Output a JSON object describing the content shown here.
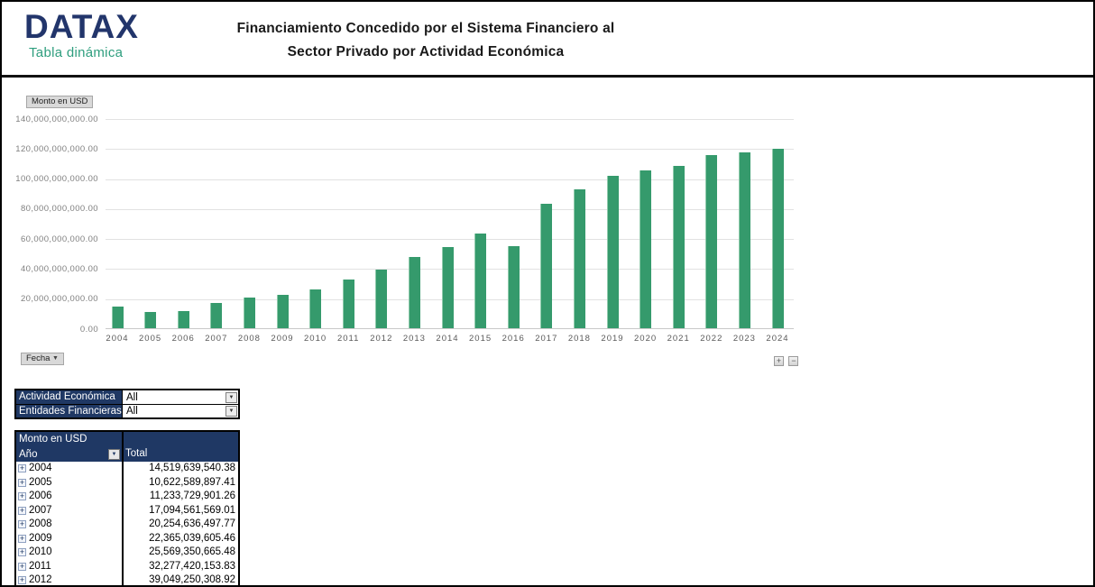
{
  "header": {
    "logo": "DATAX",
    "logo_subtitle": "Tabla dinámica",
    "title_line1": "Financiamiento Concedido por el Sistema Financiero al",
    "title_line2": "Sector Privado por Actividad Económica"
  },
  "chart": {
    "value_field_button": "Monto en USD",
    "axis_field_button": "Fecha",
    "field_caret": "▼",
    "zoom_in_label": "+",
    "zoom_out_label": "−",
    "y_ticks": [
      "140,000,000,000.00",
      "120,000,000,000.00",
      "100,000,000,000.00",
      "80,000,000,000.00",
      "60,000,000,000.00",
      "40,000,000,000.00",
      "20,000,000,000.00",
      "0.00"
    ]
  },
  "chart_data": {
    "type": "bar",
    "categories": [
      "2004",
      "2005",
      "2006",
      "2007",
      "2008",
      "2009",
      "2010",
      "2011",
      "2012",
      "2013",
      "2014",
      "2015",
      "2016",
      "2017",
      "2018",
      "2019",
      "2020",
      "2021",
      "2022",
      "2023",
      "2024"
    ],
    "values": [
      14519639540,
      10622589897,
      11233729901,
      17094561569,
      20254636498,
      22365039605,
      25569350665,
      32277420154,
      39049250309,
      47200000000,
      54200000000,
      63200000000,
      54600000000,
      83200000000,
      92800000000,
      101800000000,
      104900000000,
      108300000000,
      115500000000,
      117000000000,
      119400000000
    ],
    "title": "",
    "xlabel": "",
    "ylabel": "Monto en USD",
    "ylim": [
      0,
      140000000000
    ],
    "grid": true,
    "bar_color": "#359a6c"
  },
  "filters": [
    {
      "label": "Actividad Económica",
      "value": "All",
      "dropdown_glyph": "▼"
    },
    {
      "label": "Entidades Financieras",
      "value": "All",
      "dropdown_glyph": "▼"
    }
  ],
  "pivot_table": {
    "value_field": "Monto en USD",
    "row_header": "Año",
    "row_header_filter_glyph": "▼",
    "total_header": "Total",
    "expand_glyph": "+",
    "rows": [
      {
        "year": "2004",
        "total": "14,519,639,540.38"
      },
      {
        "year": "2005",
        "total": "10,622,589,897.41"
      },
      {
        "year": "2006",
        "total": "11,233,729,901.26"
      },
      {
        "year": "2007",
        "total": "17,094,561,569.01"
      },
      {
        "year": "2008",
        "total": "20,254,636,497.77"
      },
      {
        "year": "2009",
        "total": "22,365,039,605.46"
      },
      {
        "year": "2010",
        "total": "25,569,350,665.48"
      },
      {
        "year": "2011",
        "total": "32,277,420,153.83"
      },
      {
        "year": "2012",
        "total": "39,049,250,308.92"
      }
    ]
  },
  "colors": {
    "bar_green": "#359a6c",
    "header_navy": "#1f3864",
    "logo_navy": "#22356b",
    "accent_teal": "#2e9e7e"
  }
}
